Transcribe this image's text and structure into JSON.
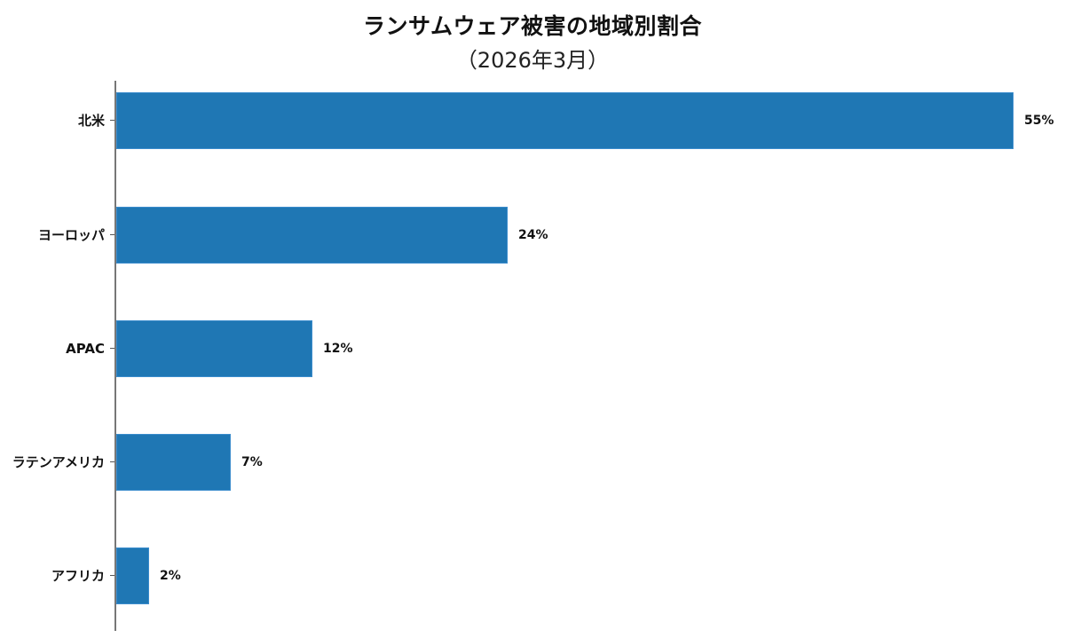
{
  "chart_data": {
    "type": "bar",
    "orientation": "horizontal",
    "title": "ランサムウェア被害の地域別割合",
    "subtitle": "（2026年3月）",
    "categories": [
      "北米",
      "ヨーロッパ",
      "APAC",
      "ラテンアメリカ",
      "アフリカ"
    ],
    "values": [
      55,
      24,
      12,
      7,
      2
    ],
    "value_labels": [
      "55%",
      "24%",
      "12%",
      "7%",
      "2%"
    ],
    "xlabel": "",
    "ylabel": "",
    "unit": "%",
    "xlim": [
      0,
      57
    ],
    "grid": false,
    "legend": null,
    "bar_color": "#1f77b4"
  }
}
